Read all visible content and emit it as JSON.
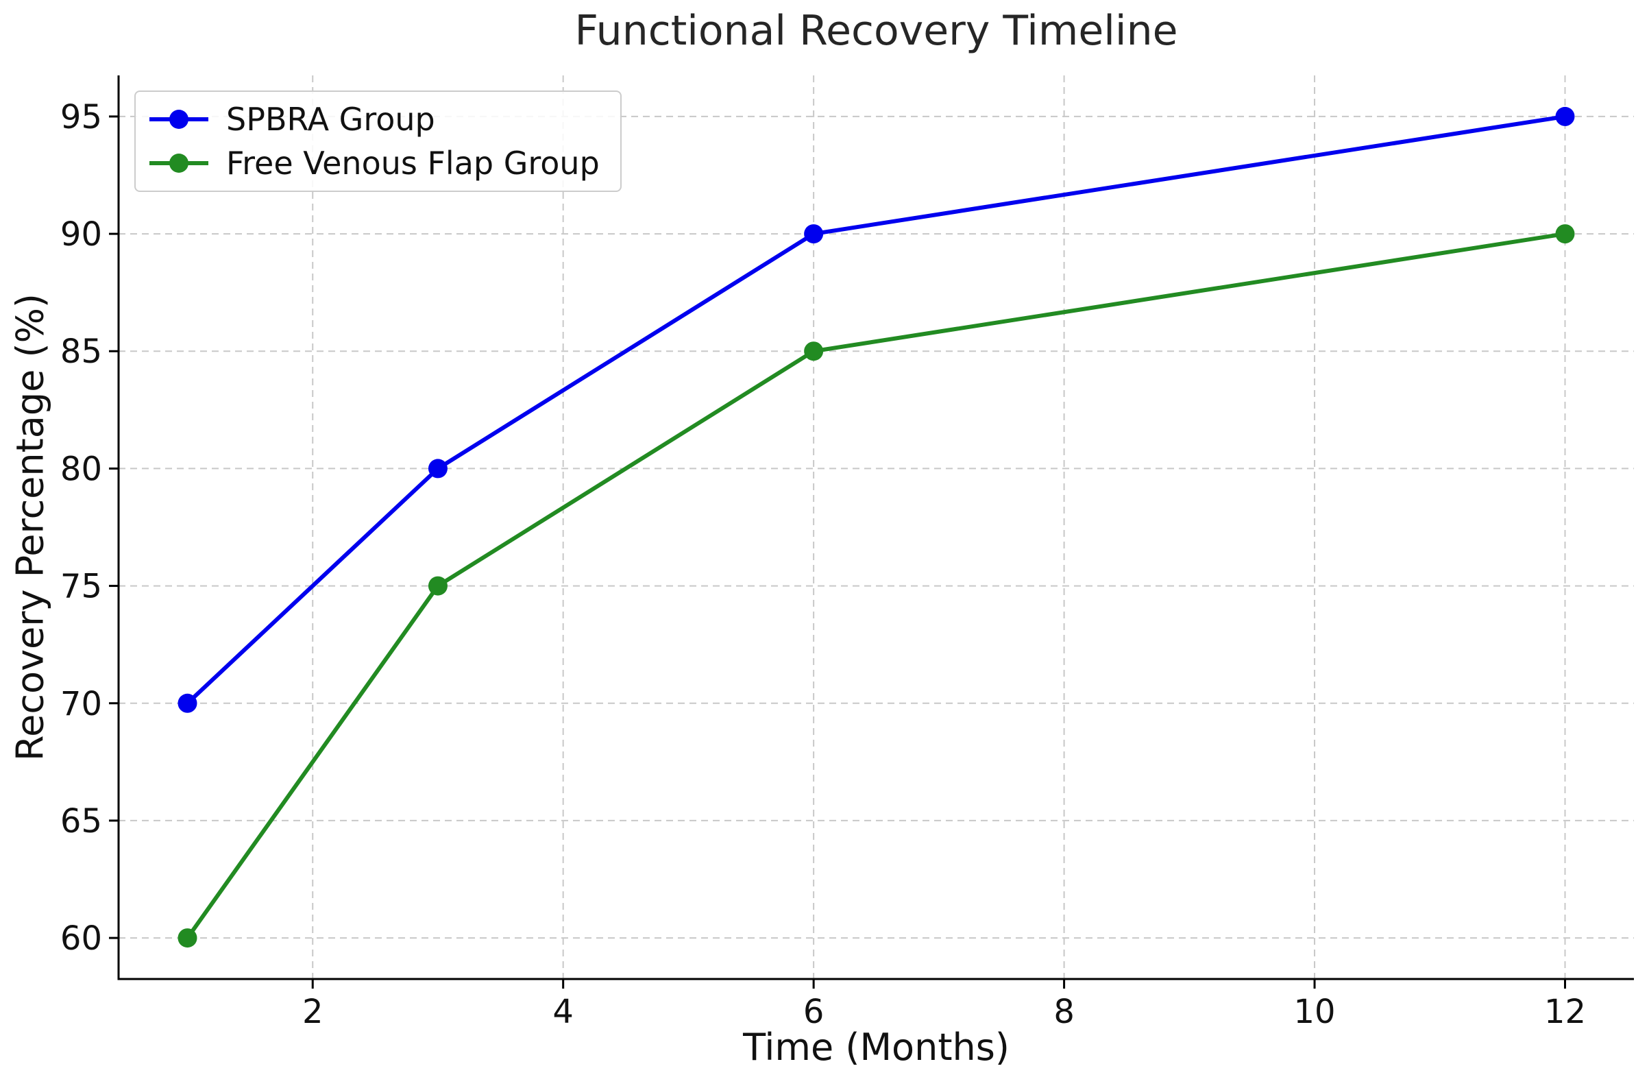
{
  "chart_data": {
    "type": "line",
    "title": "Functional Recovery Timeline",
    "xlabel": "Time (Months)",
    "ylabel": "Recovery Percentage (%)",
    "x": [
      1,
      3,
      6,
      12
    ],
    "series": [
      {
        "name": "SPBRA Group",
        "color": "#0000EE",
        "values": [
          70,
          80,
          90,
          95
        ]
      },
      {
        "name": "Free Venous Flap Group",
        "color": "#228B22",
        "values": [
          60,
          75,
          85,
          90
        ]
      }
    ],
    "xticks": [
      2,
      4,
      6,
      8,
      10,
      12
    ],
    "yticks": [
      60,
      65,
      70,
      75,
      80,
      85,
      90,
      95
    ],
    "xlim": [
      0.45,
      12.55
    ],
    "ylim": [
      58.25,
      96.75
    ],
    "grid": true,
    "grid_style": "dashed",
    "grid_color": "#c8c8c8",
    "spine_color": "#000000",
    "legend_position": "upper left",
    "marker": "circle",
    "line_width": 6,
    "marker_radius": 14
  }
}
